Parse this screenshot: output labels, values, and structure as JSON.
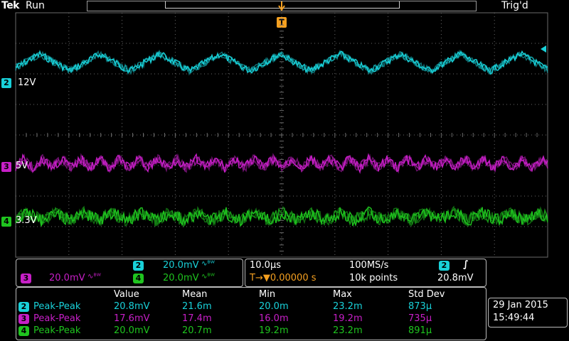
{
  "header": {
    "brand": "Tek",
    "run_state": "Run",
    "trigger_status": "Trig'd",
    "trigger_marker": "T"
  },
  "colors": {
    "ch2": "#19d1d9",
    "ch3": "#c71fc7",
    "ch4": "#1fc41f",
    "trigger": "#f5a020",
    "grid": "#6a6a6a"
  },
  "channels": [
    {
      "num": "2",
      "label": "12V"
    },
    {
      "num": "3",
      "label": "5V"
    },
    {
      "num": "4",
      "label": "3.3V"
    }
  ],
  "vertical_scales": {
    "ch2": {
      "num": "2",
      "scale": "20.0mV",
      "coupling": "∿ᴮᵂ"
    },
    "ch3": {
      "num": "3",
      "scale": "20.0mV",
      "coupling": "∿ᴮᵂ"
    },
    "ch4": {
      "num": "4",
      "scale": "20.0mV",
      "coupling": "∿ᴮᵂ"
    }
  },
  "timebase": {
    "horizontal_scale": "10.0µs",
    "sample_rate": "100MS/s",
    "trigger_position": "T→▼0.00000 s",
    "record_length": "10k points",
    "trigger_channel": "2",
    "trigger_slope": "∫",
    "trigger_level": "20.8mV"
  },
  "measurements": {
    "headers": [
      "Value",
      "Mean",
      "Min",
      "Max",
      "Std Dev"
    ],
    "rows": [
      {
        "num": "2",
        "type": "Peak-Peak",
        "value": "20.8mV",
        "mean": "21.6m",
        "min": "20.0m",
        "max": "23.2m",
        "std": "873µ"
      },
      {
        "num": "3",
        "type": "Peak-Peak",
        "value": "17.6mV",
        "mean": "17.4m",
        "min": "16.0m",
        "max": "19.2m",
        "std": "735µ"
      },
      {
        "num": "4",
        "type": "Peak-Peak",
        "value": "20.0mV",
        "mean": "20.7m",
        "min": "19.2m",
        "max": "23.2m",
        "std": "891µ"
      }
    ]
  },
  "datetime": {
    "date": "29 Jan  2015",
    "time": "15:49:44"
  }
}
